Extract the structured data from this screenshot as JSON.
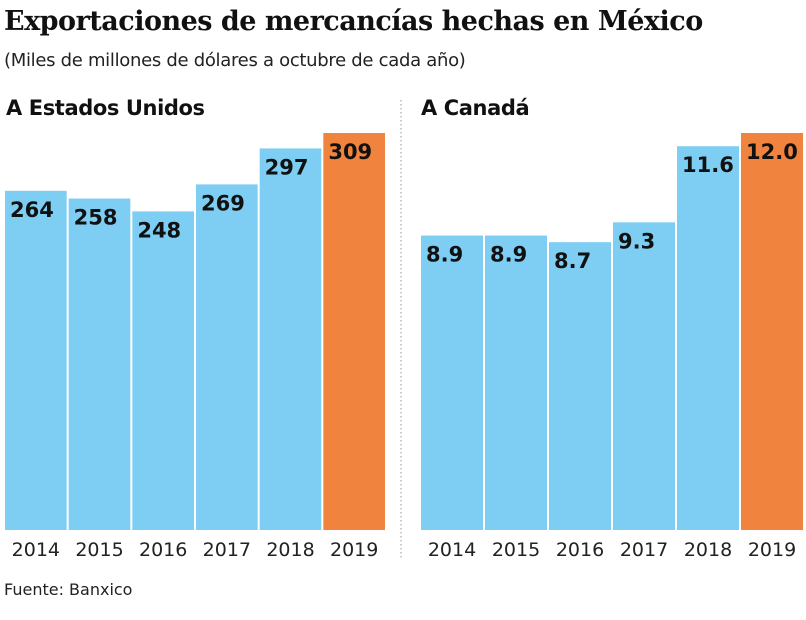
{
  "title": "Exportaciones de mercancías hechas en México",
  "subtitle": "(Miles de millones de dólares a octubre de cada año)",
  "source": "Fuente: Banxico",
  "colors": {
    "bar": "#7ecdf3",
    "highlight": "#f0843f",
    "text": "#111111"
  },
  "chart_data": [
    {
      "type": "bar",
      "title": "A Estados Unidos",
      "categories": [
        "2014",
        "2015",
        "2016",
        "2017",
        "2018",
        "2019"
      ],
      "values": [
        264,
        258,
        248,
        269,
        297,
        309
      ],
      "value_labels": [
        "264",
        "258",
        "248",
        "269",
        "297",
        "309"
      ],
      "highlight": "2019",
      "ylim": [
        0,
        309
      ],
      "grid": false
    },
    {
      "type": "bar",
      "title": "A Canadá",
      "categories": [
        "2014",
        "2015",
        "2016",
        "2017",
        "2018",
        "2019"
      ],
      "values": [
        8.9,
        8.9,
        8.7,
        9.3,
        11.6,
        12.0
      ],
      "value_labels": [
        "8.9",
        "8.9",
        "8.7",
        "9.3",
        "11.6",
        "12.0"
      ],
      "highlight": "2019",
      "ylim": [
        0,
        12.0
      ],
      "grid": false
    }
  ]
}
